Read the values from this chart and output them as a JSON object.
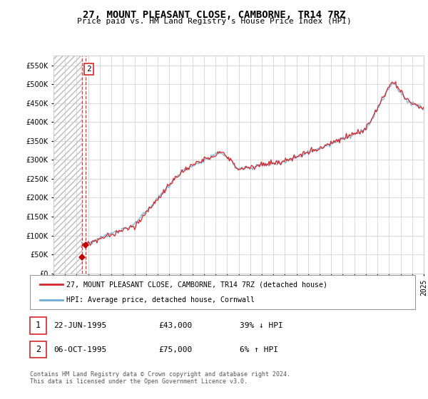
{
  "title": "27, MOUNT PLEASANT CLOSE, CAMBORNE, TR14 7RZ",
  "subtitle": "Price paid vs. HM Land Registry's House Price Index (HPI)",
  "legend_line1": "27, MOUNT PLEASANT CLOSE, CAMBORNE, TR14 7RZ (detached house)",
  "legend_line2": "HPI: Average price, detached house, Cornwall",
  "transaction1_date": "22-JUN-1995",
  "transaction1_price": "£43,000",
  "transaction1_hpi": "39% ↓ HPI",
  "transaction2_date": "06-OCT-1995",
  "transaction2_price": "£75,000",
  "transaction2_hpi": "6% ↑ HPI",
  "footer": "Contains HM Land Registry data © Crown copyright and database right 2024.\nThis data is licensed under the Open Government Licence v3.0.",
  "hpi_color": "#6baed6",
  "price_color": "#d62728",
  "marker_color": "#c00000",
  "dashed_line_color": "#d62728",
  "ylim": [
    0,
    575000
  ],
  "yticks": [
    0,
    50000,
    100000,
    150000,
    200000,
    250000,
    300000,
    350000,
    400000,
    450000,
    500000,
    550000
  ],
  "year_start": 1993,
  "year_end": 2025
}
